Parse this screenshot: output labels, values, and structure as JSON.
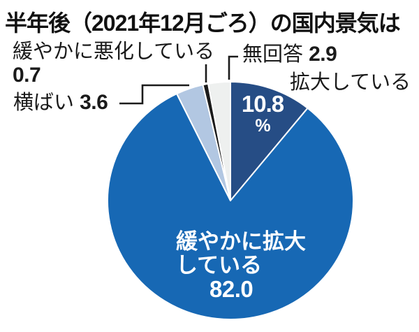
{
  "title": "半年後（2021年12月ごろ）の国内景気は",
  "chart_data": {
    "type": "pie",
    "title": "半年後（2021年12月ごろ）の国内景気は",
    "unit": "%",
    "start_angle_deg": 0,
    "direction": "clockwise",
    "legend_position": "callouts",
    "slices": [
      {
        "label": "拡大している",
        "value": 10.8,
        "color": "#264d85"
      },
      {
        "label": "緩やかに拡大している",
        "value": 82.0,
        "color": "#1768b4"
      },
      {
        "label": "横ばい",
        "value": 3.6,
        "color": "#b2c7e2"
      },
      {
        "label": "緩やかに悪化している",
        "value": 0.7,
        "color": "#1b1b1b"
      },
      {
        "label": "無回答",
        "value": 2.9,
        "color": "#eef0ef"
      }
    ]
  },
  "callouts": {
    "worsening": {
      "label": "緩やかに悪化している",
      "value": "0.7"
    },
    "flat": {
      "label": "横ばい",
      "value": "3.6"
    },
    "no_answer": {
      "label": "無回答",
      "value": "2.9"
    },
    "expanding": {
      "label": "拡大している"
    }
  },
  "pie_text": {
    "expanding_value": "10.8",
    "percent_sign": "%",
    "moderate_line1": "緩やかに拡大",
    "moderate_line2": "している",
    "moderate_value": "82.0"
  }
}
